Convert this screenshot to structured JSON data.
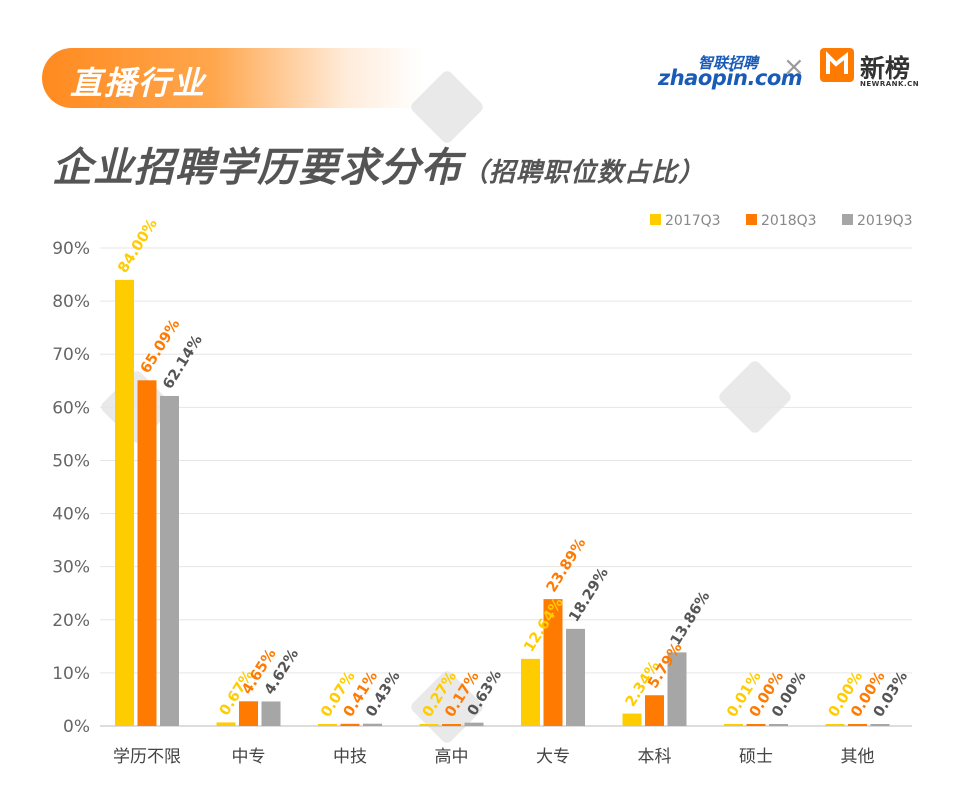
{
  "header": {
    "tag": "直播行业",
    "title": "企业招聘学历要求分布",
    "subtitle": "（招聘职位数占比）"
  },
  "logos": {
    "zhaopin_cn": "智联招聘",
    "zhaopin_en": "zhaopin.com",
    "separator": "×",
    "newrank_cn": "新榜",
    "newrank_en": "NEWRANK.CN"
  },
  "chart_data": {
    "type": "bar",
    "categories": [
      "学历不限",
      "中专",
      "中技",
      "高中",
      "大专",
      "本科",
      "硕士",
      "其他"
    ],
    "series": [
      {
        "name": "2017Q3",
        "color": "#ffcc00",
        "values": [
          84.0,
          0.67,
          0.07,
          0.27,
          12.64,
          2.34,
          0.01,
          0.0
        ]
      },
      {
        "name": "2018Q3",
        "color": "#ff7a00",
        "values": [
          65.09,
          4.65,
          0.41,
          0.17,
          23.89,
          5.79,
          0.0,
          0.0
        ]
      },
      {
        "name": "2019Q3",
        "color": "#a6a6a6",
        "values": [
          62.14,
          4.62,
          0.43,
          0.63,
          18.29,
          13.86,
          0.0,
          0.03
        ]
      }
    ],
    "data_labels": [
      [
        "84.00%",
        "0.67%",
        "0.07%",
        "0.27%",
        "12.64%",
        "2.34%",
        "0.01%",
        "0.00%"
      ],
      [
        "65.09%",
        "4.65%",
        "0.41%",
        "0.17%",
        "23.89%",
        "5.79%",
        "0.00%",
        "0.00%"
      ],
      [
        "62.14%",
        "4.62%",
        "0.43%",
        "0.63%",
        "18.29%",
        "13.86%",
        "0.00%",
        "0.03%"
      ]
    ],
    "yticks": [
      "0%",
      "10%",
      "20%",
      "30%",
      "40%",
      "50%",
      "60%",
      "70%",
      "80%",
      "90%"
    ],
    "ylim": [
      0,
      90
    ],
    "grid": true,
    "legend": "top-right"
  }
}
